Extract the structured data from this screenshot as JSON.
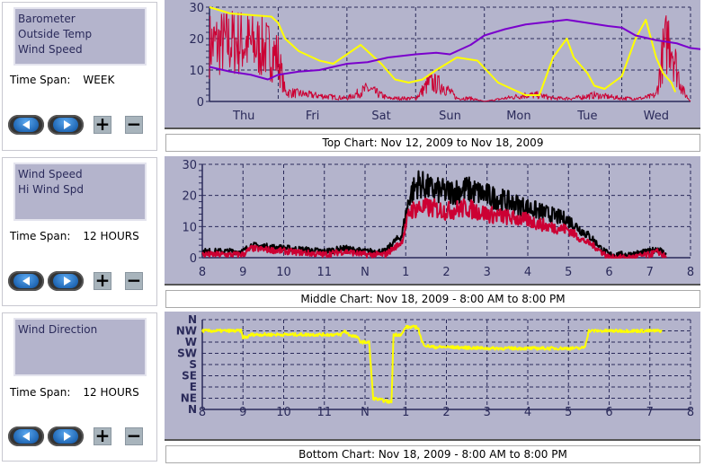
{
  "panels": [
    {
      "series": [
        "Barometer",
        "Outside Temp",
        "Wind Speed"
      ],
      "time_span_label": "Time Span:",
      "time_span": "WEEK",
      "caption": "Top Chart:  Nov 12, 2009  to  Nov 18, 2009"
    },
    {
      "series": [
        "Wind Speed",
        "Hi Wind Spd"
      ],
      "time_span_label": "Time Span:",
      "time_span": "12 HOURS",
      "caption": "Middle Chart:  Nov 18, 2009 - 8:00 AM  to  8:00 PM"
    },
    {
      "series": [
        "Wind Direction"
      ],
      "time_span_label": "Time Span:",
      "time_span": "12 HOURS",
      "caption": "Bottom Chart:  Nov 18, 2009 - 8:00 AM  to  8:00 PM"
    }
  ],
  "buttons": {
    "back": "back-arrow",
    "forward": "forward-arrow",
    "zoom_in": "+",
    "zoom_out": "−"
  },
  "chart_data": [
    {
      "type": "line",
      "ylim": [
        0,
        30
      ],
      "yticks": [
        "0",
        "10",
        "20",
        "30"
      ],
      "xticks": [
        "Thu",
        "Fri",
        "Sat",
        "Sun",
        "Mon",
        "Tue",
        "Wed"
      ],
      "xlim": [
        0,
        7
      ],
      "series": [
        {
          "name": "Barometer",
          "color": "#7a00cc",
          "x": [
            0,
            0.3,
            0.6,
            0.85,
            1,
            1.3,
            1.6,
            2,
            2.3,
            2.6,
            3,
            3.3,
            3.5,
            3.8,
            4,
            4.3,
            4.6,
            5,
            5.2,
            5.5,
            5.8,
            6,
            6.2,
            6.5,
            6.8,
            7,
            7.2
          ],
          "y": [
            11,
            9.5,
            8.5,
            7,
            8.5,
            9.5,
            10,
            12,
            12.5,
            14,
            15,
            15.5,
            15,
            18,
            21,
            23,
            24.5,
            25.5,
            26,
            25,
            24,
            23.5,
            21,
            19.5,
            18.5,
            17,
            16.5
          ]
        },
        {
          "name": "Outside Temp",
          "color": "#ffff00",
          "x": [
            0,
            0.3,
            0.9,
            1,
            1.1,
            1.3,
            1.6,
            1.8,
            2,
            2.2,
            2.5,
            2.7,
            2.9,
            3.1,
            3.3,
            3.6,
            3.9,
            4.2,
            4.4,
            4.6,
            4.8,
            5,
            5.2,
            5.3,
            5.5,
            5.6,
            5.75,
            6,
            6.2,
            6.35,
            6.5,
            6.6,
            6.72,
            6.78
          ],
          "y": [
            30,
            28,
            27,
            25,
            20,
            16,
            13,
            12,
            15,
            18,
            12,
            7,
            6,
            7,
            10,
            14,
            13,
            6,
            4,
            2,
            2,
            14,
            20,
            14,
            9,
            5,
            4,
            8,
            20,
            26,
            14,
            9,
            6,
            3
          ]
        },
        {
          "name": "Wind Speed",
          "color": "#cc0033",
          "x": [
            0,
            0.4,
            0.8,
            1,
            1.1,
            1.5,
            2,
            2.3,
            2.6,
            3,
            3.2,
            3.4,
            3.6,
            3.8,
            4,
            4.3,
            4.6,
            4.8,
            5,
            5.3,
            5.6,
            6,
            6.3,
            6.5,
            6.6,
            6.7,
            6.8,
            6.9,
            7
          ],
          "y": [
            18,
            19,
            17,
            14,
            3,
            2,
            1,
            4,
            1,
            1,
            6,
            5,
            1,
            1,
            0,
            1,
            2,
            2,
            1,
            1,
            2,
            1,
            1,
            2,
            15,
            22,
            10,
            3,
            0
          ]
        }
      ]
    },
    {
      "type": "line",
      "ylim": [
        0,
        30
      ],
      "yticks": [
        "0",
        "10",
        "20",
        "30"
      ],
      "xticks": [
        "8",
        "9",
        "10",
        "11",
        "N",
        "1",
        "2",
        "3",
        "4",
        "5",
        "6",
        "7",
        "8"
      ],
      "xlim": [
        0,
        12
      ],
      "series": [
        {
          "name": "Hi Wind Spd",
          "color": "#000000",
          "x": [
            0,
            1,
            1.2,
            3,
            3.5,
            4,
            4.5,
            4.7,
            4.9,
            5.1,
            5.3,
            5.6,
            6,
            6.5,
            7,
            7.5,
            8,
            8.5,
            9,
            9.3,
            9.6,
            9.8,
            10,
            10.5,
            11,
            11.2,
            11.4
          ],
          "y": [
            2,
            2,
            4,
            2,
            3,
            2,
            2,
            5,
            7,
            20,
            24,
            22,
            21,
            22,
            20,
            18,
            16,
            14,
            12,
            9,
            6,
            3,
            1,
            1,
            2,
            3,
            1
          ]
        },
        {
          "name": "Wind Speed",
          "color": "#cc0033",
          "x": [
            0,
            1,
            1.2,
            3,
            3.5,
            4,
            4.5,
            4.7,
            4.9,
            5.1,
            5.3,
            5.6,
            6,
            6.5,
            7,
            7.5,
            8,
            8.5,
            9,
            9.3,
            9.6,
            9.8,
            10,
            10.5,
            11,
            11.2,
            11.4
          ],
          "y": [
            1,
            1,
            3,
            1,
            2,
            1,
            1,
            3,
            5,
            15,
            16,
            16,
            15,
            16,
            14,
            13,
            12,
            10,
            9,
            6,
            4,
            2,
            0,
            0,
            1,
            2,
            0
          ]
        }
      ]
    },
    {
      "type": "line",
      "ylim": [
        0,
        360
      ],
      "yticks": [
        "N",
        "NE",
        "E",
        "SE",
        "S",
        "SW",
        "W",
        "NW",
        "N"
      ],
      "xticks": [
        "8",
        "9",
        "10",
        "11",
        "N",
        "1",
        "2",
        "3",
        "4",
        "5",
        "6",
        "7",
        "8"
      ],
      "xlim": [
        0,
        12
      ],
      "series": [
        {
          "name": "Wind Direction",
          "color": "#ffff00",
          "x": [
            0,
            0.95,
            1,
            1.1,
            1.2,
            1.3,
            3.4,
            3.5,
            3.6,
            3.8,
            3.9,
            4.1,
            4.2,
            4.6,
            4.65,
            4.7,
            4.9,
            5,
            5.3,
            5.4,
            5.5,
            5.7,
            6,
            7,
            8,
            9,
            9.3,
            9.4,
            9.5,
            10,
            11.3
          ],
          "y": [
            315,
            315,
            290,
            290,
            300,
            300,
            300,
            315,
            300,
            290,
            270,
            270,
            45,
            30,
            30,
            300,
            300,
            330,
            330,
            270,
            255,
            250,
            250,
            245,
            245,
            245,
            245,
            250,
            315,
            315,
            315
          ]
        }
      ]
    }
  ]
}
